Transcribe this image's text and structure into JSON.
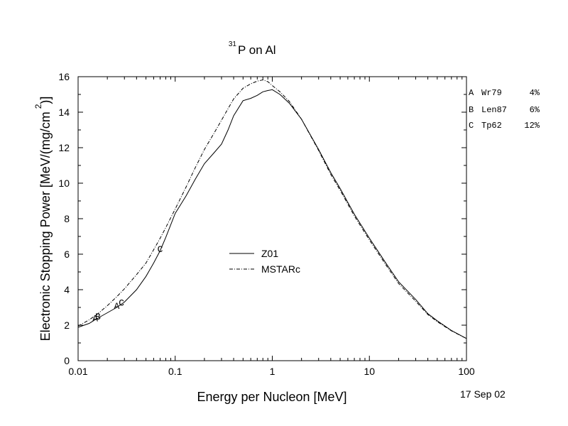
{
  "chart_data": {
    "type": "line",
    "title": {
      "superscript": "31",
      "text": "P on Al"
    },
    "xlabel": "Energy per Nucleon [MeV]",
    "ylabel": {
      "text": "Electronic Stopping Power [MeV/(mg/cm",
      "superscript": "2",
      "suffix": ")]"
    },
    "x_scale": "log",
    "xlim": [
      0.01,
      100
    ],
    "ylim": [
      0,
      16
    ],
    "x_ticks": [
      {
        "value": 0.01,
        "label": "0.01"
      },
      {
        "value": 0.1,
        "label": "0.1"
      },
      {
        "value": 1,
        "label": "1"
      },
      {
        "value": 10,
        "label": "10"
      },
      {
        "value": 100,
        "label": "100"
      }
    ],
    "y_ticks": [
      {
        "value": 0,
        "label": "0"
      },
      {
        "value": 2,
        "label": "2"
      },
      {
        "value": 4,
        "label": "4"
      },
      {
        "value": 6,
        "label": "6"
      },
      {
        "value": 8,
        "label": "8"
      },
      {
        "value": 10,
        "label": "10"
      },
      {
        "value": 12,
        "label": "12"
      },
      {
        "value": 14,
        "label": "14"
      },
      {
        "value": 16,
        "label": "16"
      }
    ],
    "series": [
      {
        "name": "Z01",
        "style": "solid",
        "color": "#000000",
        "x": [
          0.01,
          0.013,
          0.016,
          0.02,
          0.025,
          0.03,
          0.04,
          0.05,
          0.06,
          0.07,
          0.08,
          0.1,
          0.13,
          0.16,
          0.2,
          0.25,
          0.3,
          0.35,
          0.4,
          0.5,
          0.6,
          0.7,
          0.8,
          0.9,
          1,
          1.2,
          1.5,
          2,
          3,
          4,
          5,
          7,
          10,
          15,
          20,
          30,
          40,
          50,
          70,
          100
        ],
        "y": [
          1.88,
          2.1,
          2.4,
          2.7,
          3.0,
          3.3,
          4.0,
          4.75,
          5.5,
          6.2,
          6.95,
          8.3,
          9.3,
          10.2,
          11.1,
          11.7,
          12.2,
          13.0,
          13.8,
          14.65,
          14.78,
          14.95,
          15.15,
          15.22,
          15.27,
          15.0,
          14.5,
          13.6,
          11.9,
          10.6,
          9.7,
          8.25,
          6.9,
          5.45,
          4.45,
          3.45,
          2.65,
          2.25,
          1.7,
          1.25
        ]
      },
      {
        "name": "MSTARc",
        "style": "dashdot",
        "color": "#000000",
        "x": [
          0.01,
          0.013,
          0.016,
          0.02,
          0.025,
          0.03,
          0.04,
          0.05,
          0.06,
          0.07,
          0.08,
          0.1,
          0.13,
          0.16,
          0.2,
          0.25,
          0.3,
          0.35,
          0.4,
          0.5,
          0.6,
          0.7,
          0.8,
          0.9,
          1,
          1.2,
          1.5,
          2,
          3,
          4,
          5,
          7,
          10,
          15,
          20,
          30,
          40,
          50,
          70,
          100
        ],
        "y": [
          1.95,
          2.3,
          2.65,
          3.1,
          3.6,
          4.05,
          4.85,
          5.5,
          6.25,
          6.9,
          7.5,
          8.55,
          9.8,
          10.85,
          11.9,
          12.8,
          13.55,
          14.2,
          14.75,
          15.35,
          15.6,
          15.75,
          15.82,
          15.72,
          15.5,
          15.15,
          14.6,
          13.6,
          11.85,
          10.5,
          9.6,
          8.15,
          6.8,
          5.35,
          4.35,
          3.35,
          2.6,
          2.2,
          1.68,
          1.25
        ]
      }
    ],
    "legend": {
      "placement": "center",
      "entries": [
        "Z01",
        "MSTARc"
      ]
    },
    "data_markers": [
      {
        "label": "A",
        "x": [
          0.015,
          0.025
        ]
      },
      {
        "label": "B",
        "x": [
          0.016
        ]
      },
      {
        "label": "C",
        "x": [
          0.028,
          0.07
        ]
      }
    ],
    "reference_table": [
      {
        "key": "A",
        "source": "Wr79",
        "error": "4%"
      },
      {
        "key": "B",
        "source": "Len87",
        "error": "6%"
      },
      {
        "key": "C",
        "source": "Tp62",
        "error": "12%"
      }
    ],
    "date": "17 Sep 02",
    "grid": false
  }
}
